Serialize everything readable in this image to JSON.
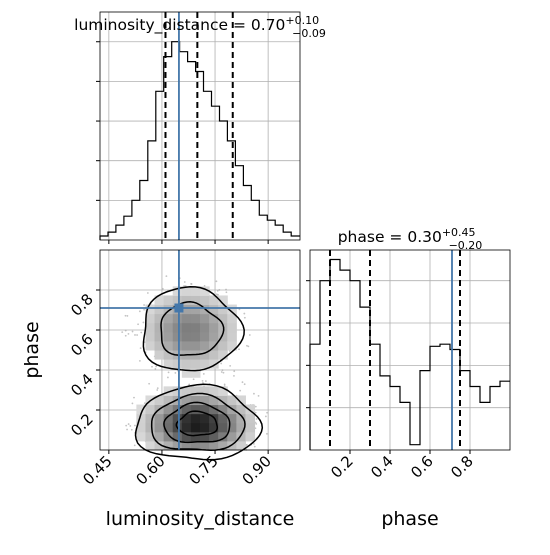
{
  "figure": {
    "type": "corner plot",
    "colors": {
      "truth": "#4477aa",
      "histogram": "#000000",
      "quantile": "#000000",
      "grid": "#b0b0b0",
      "scatter": "#aaaaaa",
      "density_max": "#111111"
    }
  },
  "chart_data": [
    {
      "type": "bar",
      "panel": "luminosity_distance marginal",
      "title": {
        "label": "luminosity_distance",
        "median": "0.70",
        "plus": "+0.10",
        "minus": "−0.09"
      },
      "xlabel": "",
      "ylabel": "",
      "xlim": [
        0.425,
        0.99
      ],
      "x_ticks": [
        0.45,
        0.6,
        0.75,
        0.9
      ],
      "histtype": "step",
      "bin_edges": [
        0.425,
        0.4475,
        0.47,
        0.4925,
        0.515,
        0.5375,
        0.56,
        0.5825,
        0.605,
        0.6275,
        0.65,
        0.6725,
        0.695,
        0.7175,
        0.74,
        0.7625,
        0.785,
        0.8075,
        0.83,
        0.8525,
        0.875,
        0.8975,
        0.92,
        0.9425,
        0.965,
        0.99
      ],
      "counts": [
        4,
        8,
        15,
        24,
        40,
        60,
        100,
        150,
        185,
        200,
        190,
        180,
        170,
        150,
        135,
        120,
        100,
        75,
        55,
        40,
        25,
        20,
        15,
        8,
        4
      ],
      "quantiles": [
        0.61,
        0.7,
        0.8
      ],
      "truth": 0.648,
      "grid": true
    },
    {
      "type": "bar",
      "panel": "phase marginal",
      "title": {
        "label": "phase",
        "median": "0.30",
        "plus": "+0.45",
        "minus": "−0.20"
      },
      "xlabel": "phase",
      "ylabel": "",
      "xlim": [
        0.0,
        1.0
      ],
      "x_ticks": [
        "0.2",
        "0.4",
        "0.6",
        "0.8"
      ],
      "histtype": "step",
      "bin_edges": [
        0.0,
        0.05,
        0.1,
        0.15,
        0.2,
        0.25,
        0.3,
        0.35,
        0.4,
        0.45,
        0.5,
        0.55,
        0.6,
        0.65,
        0.7,
        0.75,
        0.8,
        0.85,
        0.9,
        0.95,
        1.0
      ],
      "counts": [
        100,
        160,
        180,
        170,
        160,
        135,
        100,
        70,
        60,
        45,
        5,
        75,
        98,
        100,
        95,
        75,
        60,
        45,
        60,
        65
      ],
      "quantiles": [
        0.1,
        0.3,
        0.75
      ],
      "truth": 0.71,
      "grid": true
    },
    {
      "type": "heatmap",
      "panel": "luminosity_distance vs phase",
      "xlabel": "luminosity_distance",
      "ylabel": "phase",
      "xlim": [
        0.425,
        0.99
      ],
      "ylim": [
        0.0,
        1.0
      ],
      "x_ticks": [
        "0.45",
        "0.60",
        "0.75",
        "0.90"
      ],
      "y_ticks": [
        "0.2",
        "0.4",
        "0.6",
        "0.8"
      ],
      "modes": [
        {
          "x": 0.7,
          "y": 0.13,
          "sx": 0.085,
          "sy": 0.09,
          "weight": 1.0
        },
        {
          "x": 0.68,
          "y": 0.6,
          "sx": 0.08,
          "sy": 0.12,
          "weight": 0.55
        }
      ],
      "contour_levels": [
        0.12,
        0.3,
        0.55,
        0.8
      ],
      "truth": {
        "x": 0.648,
        "y": 0.71
      },
      "grid": true
    }
  ]
}
